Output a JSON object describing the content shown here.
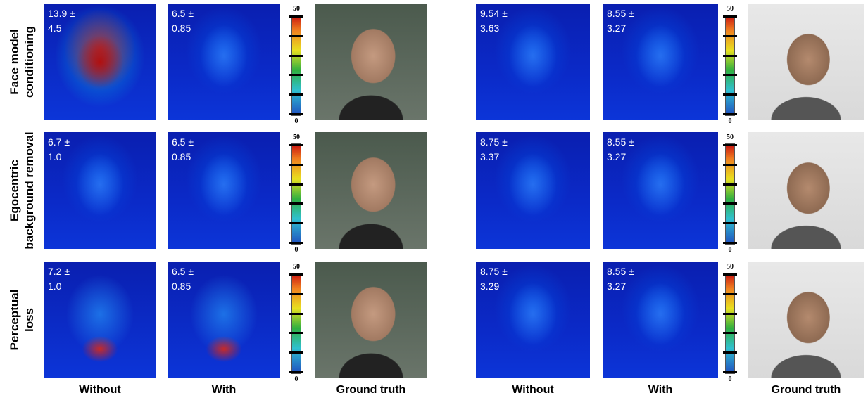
{
  "row_labels": [
    [
      "Face model",
      "conditioning"
    ],
    [
      "Egocentric",
      "background removal"
    ],
    [
      "Perceptual",
      "loss"
    ]
  ],
  "groups": [
    {
      "rows": [
        {
          "without": [
            "13.9 ±",
            "4.5"
          ],
          "with": [
            "6.5 ±",
            "0.85"
          ]
        },
        {
          "without": [
            "6.7 ±",
            "1.0"
          ],
          "with": [
            "6.5 ±",
            "0.85"
          ]
        },
        {
          "without": [
            "7.2 ±",
            "1.0"
          ],
          "with": [
            "6.5 ±",
            "0.85"
          ]
        }
      ],
      "columns": [
        "Without",
        "With",
        "Ground truth"
      ]
    },
    {
      "rows": [
        {
          "without": [
            "9.54 ±",
            "3.63"
          ],
          "with": [
            "8.55 ±",
            "3.27"
          ]
        },
        {
          "without": [
            "8.75 ±",
            "3.37"
          ],
          "with": [
            "8.55 ±",
            "3.27"
          ]
        },
        {
          "without": [
            "8.75 ±",
            "3.29"
          ],
          "with": [
            "8.55 ±",
            "3.27"
          ]
        }
      ],
      "columns": [
        "Without",
        "With",
        "Ground truth"
      ]
    }
  ],
  "colorbar": {
    "max": "50",
    "min": "0"
  }
}
